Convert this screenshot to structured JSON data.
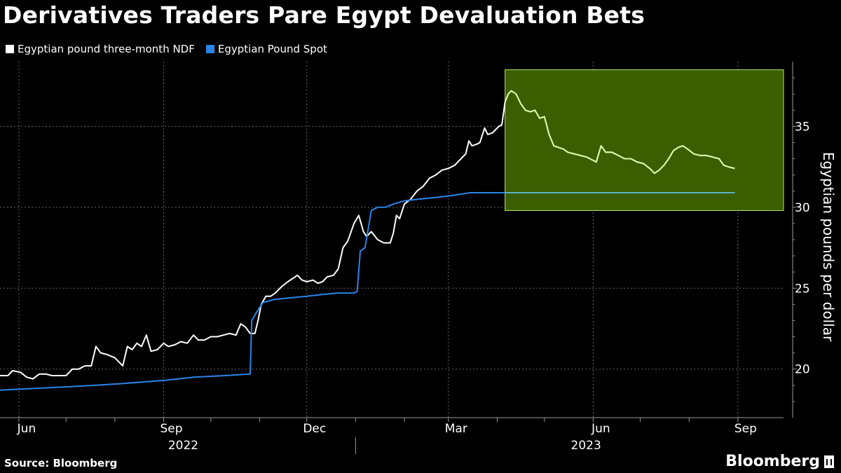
{
  "title": "Derivatives Traders Pare Egypt Devaluation Bets",
  "footer": {
    "source": "Source: Bloomberg",
    "brand": "Bloomberg"
  },
  "colors": {
    "ndf": "#ffffff",
    "spot": "#2b84e8",
    "highlight": "#3a5e00",
    "highlight_border": "#b7e36a",
    "ndf_highlighted": "#d9f5a6",
    "spot_highlighted": "#5fb0c8"
  },
  "chart_data": {
    "type": "line",
    "title": "Derivatives Traders Pare Egypt Devaluation Bets",
    "ylabel": "Egyptian pounds per dollar",
    "ylim": [
      17,
      39
    ],
    "yticks": [
      20,
      25,
      30,
      35
    ],
    "xlim": [
      "2022-05-20",
      "2023-09-30"
    ],
    "xticks": [
      {
        "label": "Jun",
        "date": "2022-06-01"
      },
      {
        "label": "Sep",
        "date": "2022-09-01"
      },
      {
        "label": "Dec",
        "date": "2022-12-01"
      },
      {
        "label": "Mar",
        "date": "2023-03-01"
      },
      {
        "label": "Jun",
        "date": "2023-06-01"
      },
      {
        "label": "Sep",
        "date": "2023-09-01"
      }
    ],
    "years": [
      {
        "label": "2022",
        "date": "2022-09-01"
      },
      {
        "label": "2023",
        "date": "2023-05-15"
      }
    ],
    "grid": true,
    "legend": "top-left",
    "highlight": {
      "x0": "2023-04-06",
      "x1": "2023-09-30",
      "y0": 29.8,
      "y1": 38.5
    },
    "series": [
      {
        "name": "Egyptian pound three-month NDF",
        "points": [
          [
            "2022-05-20",
            19.6
          ],
          [
            "2022-05-25",
            19.6
          ],
          [
            "2022-05-28",
            19.9
          ],
          [
            "2022-06-02",
            19.8
          ],
          [
            "2022-06-06",
            19.5
          ],
          [
            "2022-06-10",
            19.4
          ],
          [
            "2022-06-14",
            19.7
          ],
          [
            "2022-06-18",
            19.7
          ],
          [
            "2022-06-22",
            19.6
          ],
          [
            "2022-06-27",
            19.6
          ],
          [
            "2022-07-01",
            19.6
          ],
          [
            "2022-07-05",
            20.0
          ],
          [
            "2022-07-09",
            20.0
          ],
          [
            "2022-07-13",
            20.2
          ],
          [
            "2022-07-17",
            20.2
          ],
          [
            "2022-07-20",
            21.4
          ],
          [
            "2022-07-23",
            21.0
          ],
          [
            "2022-07-27",
            20.9
          ],
          [
            "2022-08-01",
            20.7
          ],
          [
            "2022-08-03",
            20.5
          ],
          [
            "2022-08-06",
            20.2
          ],
          [
            "2022-08-09",
            21.4
          ],
          [
            "2022-08-12",
            21.2
          ],
          [
            "2022-08-15",
            21.6
          ],
          [
            "2022-08-18",
            21.4
          ],
          [
            "2022-08-21",
            22.1
          ],
          [
            "2022-08-24",
            21.1
          ],
          [
            "2022-08-28",
            21.2
          ],
          [
            "2022-09-01",
            21.6
          ],
          [
            "2022-09-04",
            21.4
          ],
          [
            "2022-09-08",
            21.5
          ],
          [
            "2022-09-12",
            21.7
          ],
          [
            "2022-09-16",
            21.6
          ],
          [
            "2022-09-20",
            22.1
          ],
          [
            "2022-09-23",
            21.8
          ],
          [
            "2022-09-27",
            21.8
          ],
          [
            "2022-10-01",
            22.0
          ],
          [
            "2022-10-05",
            22.0
          ],
          [
            "2022-10-09",
            22.1
          ],
          [
            "2022-10-13",
            22.2
          ],
          [
            "2022-10-17",
            22.1
          ],
          [
            "2022-10-20",
            22.8
          ],
          [
            "2022-10-23",
            22.6
          ],
          [
            "2022-10-26",
            22.2
          ],
          [
            "2022-10-29",
            22.2
          ],
          [
            "2022-10-31",
            23.0
          ],
          [
            "2022-11-02",
            24.0
          ],
          [
            "2022-11-05",
            24.5
          ],
          [
            "2022-11-08",
            24.5
          ],
          [
            "2022-11-11",
            24.7
          ],
          [
            "2022-11-15",
            25.1
          ],
          [
            "2022-11-19",
            25.4
          ],
          [
            "2022-11-22",
            25.6
          ],
          [
            "2022-11-25",
            25.8
          ],
          [
            "2022-11-28",
            25.5
          ],
          [
            "2022-12-01",
            25.4
          ],
          [
            "2022-12-05",
            25.5
          ],
          [
            "2022-12-08",
            25.3
          ],
          [
            "2022-12-11",
            25.4
          ],
          [
            "2022-12-14",
            25.7
          ],
          [
            "2022-12-18",
            25.8
          ],
          [
            "2022-12-21",
            26.2
          ],
          [
            "2022-12-24",
            27.5
          ],
          [
            "2022-12-27",
            27.9
          ],
          [
            "2022-12-31",
            29.0
          ],
          [
            "2023-01-03",
            29.5
          ],
          [
            "2023-01-06",
            28.5
          ],
          [
            "2023-01-08",
            28.2
          ],
          [
            "2023-01-11",
            28.5
          ],
          [
            "2023-01-15",
            28.0
          ],
          [
            "2023-01-19",
            27.8
          ],
          [
            "2023-01-23",
            27.8
          ],
          [
            "2023-01-25",
            28.4
          ],
          [
            "2023-01-27",
            29.5
          ],
          [
            "2023-01-29",
            29.3
          ],
          [
            "2023-02-01",
            30.2
          ],
          [
            "2023-02-05",
            30.5
          ],
          [
            "2023-02-09",
            31.0
          ],
          [
            "2023-02-13",
            31.3
          ],
          [
            "2023-02-17",
            31.8
          ],
          [
            "2023-02-21",
            32.0
          ],
          [
            "2023-02-25",
            32.3
          ],
          [
            "2023-03-01",
            32.4
          ],
          [
            "2023-03-05",
            32.6
          ],
          [
            "2023-03-09",
            33.0
          ],
          [
            "2023-03-12",
            33.3
          ],
          [
            "2023-03-14",
            34.1
          ],
          [
            "2023-03-16",
            33.8
          ],
          [
            "2023-03-19",
            33.9
          ],
          [
            "2023-03-21",
            34.0
          ],
          [
            "2023-03-24",
            34.9
          ],
          [
            "2023-03-26",
            34.5
          ],
          [
            "2023-03-29",
            34.6
          ],
          [
            "2023-03-31",
            34.8
          ],
          [
            "2023-04-02",
            35.0
          ],
          [
            "2023-04-04",
            35.1
          ],
          [
            "2023-04-06",
            36.5
          ],
          [
            "2023-04-08",
            37.0
          ],
          [
            "2023-04-10",
            37.2
          ],
          [
            "2023-04-13",
            37.0
          ],
          [
            "2023-04-16",
            36.4
          ],
          [
            "2023-04-19",
            36.0
          ],
          [
            "2023-04-22",
            35.9
          ],
          [
            "2023-04-25",
            36.0
          ],
          [
            "2023-04-28",
            35.5
          ],
          [
            "2023-05-01",
            35.6
          ],
          [
            "2023-05-04",
            34.5
          ],
          [
            "2023-05-07",
            33.8
          ],
          [
            "2023-05-10",
            33.7
          ],
          [
            "2023-05-13",
            33.6
          ],
          [
            "2023-05-16",
            33.4
          ],
          [
            "2023-05-20",
            33.3
          ],
          [
            "2023-05-24",
            33.2
          ],
          [
            "2023-05-28",
            33.1
          ],
          [
            "2023-06-01",
            32.9
          ],
          [
            "2023-06-03",
            32.8
          ],
          [
            "2023-06-06",
            33.8
          ],
          [
            "2023-06-09",
            33.4
          ],
          [
            "2023-06-13",
            33.4
          ],
          [
            "2023-06-17",
            33.2
          ],
          [
            "2023-06-21",
            33.0
          ],
          [
            "2023-06-25",
            33.0
          ],
          [
            "2023-06-29",
            32.8
          ],
          [
            "2023-07-03",
            32.7
          ],
          [
            "2023-07-07",
            32.4
          ],
          [
            "2023-07-10",
            32.1
          ],
          [
            "2023-07-13",
            32.3
          ],
          [
            "2023-07-16",
            32.6
          ],
          [
            "2023-07-19",
            33.0
          ],
          [
            "2023-07-22",
            33.5
          ],
          [
            "2023-07-25",
            33.7
          ],
          [
            "2023-07-28",
            33.8
          ],
          [
            "2023-07-31",
            33.6
          ],
          [
            "2023-08-04",
            33.3
          ],
          [
            "2023-08-08",
            33.2
          ],
          [
            "2023-08-12",
            33.2
          ],
          [
            "2023-08-16",
            33.1
          ],
          [
            "2023-08-20",
            33.0
          ],
          [
            "2023-08-23",
            32.6
          ],
          [
            "2023-08-26",
            32.5
          ],
          [
            "2023-08-30",
            32.4
          ]
        ]
      },
      {
        "name": "Egyptian Pound Spot",
        "points": [
          [
            "2022-05-20",
            18.7
          ],
          [
            "2022-06-10",
            18.8
          ],
          [
            "2022-07-01",
            18.9
          ],
          [
            "2022-07-20",
            19.0
          ],
          [
            "2022-08-05",
            19.1
          ],
          [
            "2022-09-01",
            19.3
          ],
          [
            "2022-09-20",
            19.5
          ],
          [
            "2022-10-10",
            19.6
          ],
          [
            "2022-10-26",
            19.7
          ],
          [
            "2022-10-27",
            23.0
          ],
          [
            "2022-10-30",
            23.5
          ],
          [
            "2022-11-03",
            24.1
          ],
          [
            "2022-11-10",
            24.3
          ],
          [
            "2022-11-20",
            24.4
          ],
          [
            "2022-12-01",
            24.5
          ],
          [
            "2022-12-10",
            24.6
          ],
          [
            "2022-12-20",
            24.7
          ],
          [
            "2022-12-31",
            24.7
          ],
          [
            "2023-01-02",
            24.8
          ],
          [
            "2023-01-04",
            27.3
          ],
          [
            "2023-01-07",
            27.5
          ],
          [
            "2023-01-11",
            29.8
          ],
          [
            "2023-01-15",
            30.0
          ],
          [
            "2023-01-20",
            30.0
          ],
          [
            "2023-01-25",
            30.2
          ],
          [
            "2023-02-01",
            30.4
          ],
          [
            "2023-02-10",
            30.5
          ],
          [
            "2023-02-20",
            30.6
          ],
          [
            "2023-03-01",
            30.7
          ],
          [
            "2023-03-15",
            30.9
          ],
          [
            "2023-04-01",
            30.9
          ],
          [
            "2023-05-01",
            30.9
          ],
          [
            "2023-06-01",
            30.9
          ],
          [
            "2023-07-01",
            30.9
          ],
          [
            "2023-08-01",
            30.9
          ],
          [
            "2023-08-30",
            30.9
          ]
        ]
      }
    ]
  }
}
